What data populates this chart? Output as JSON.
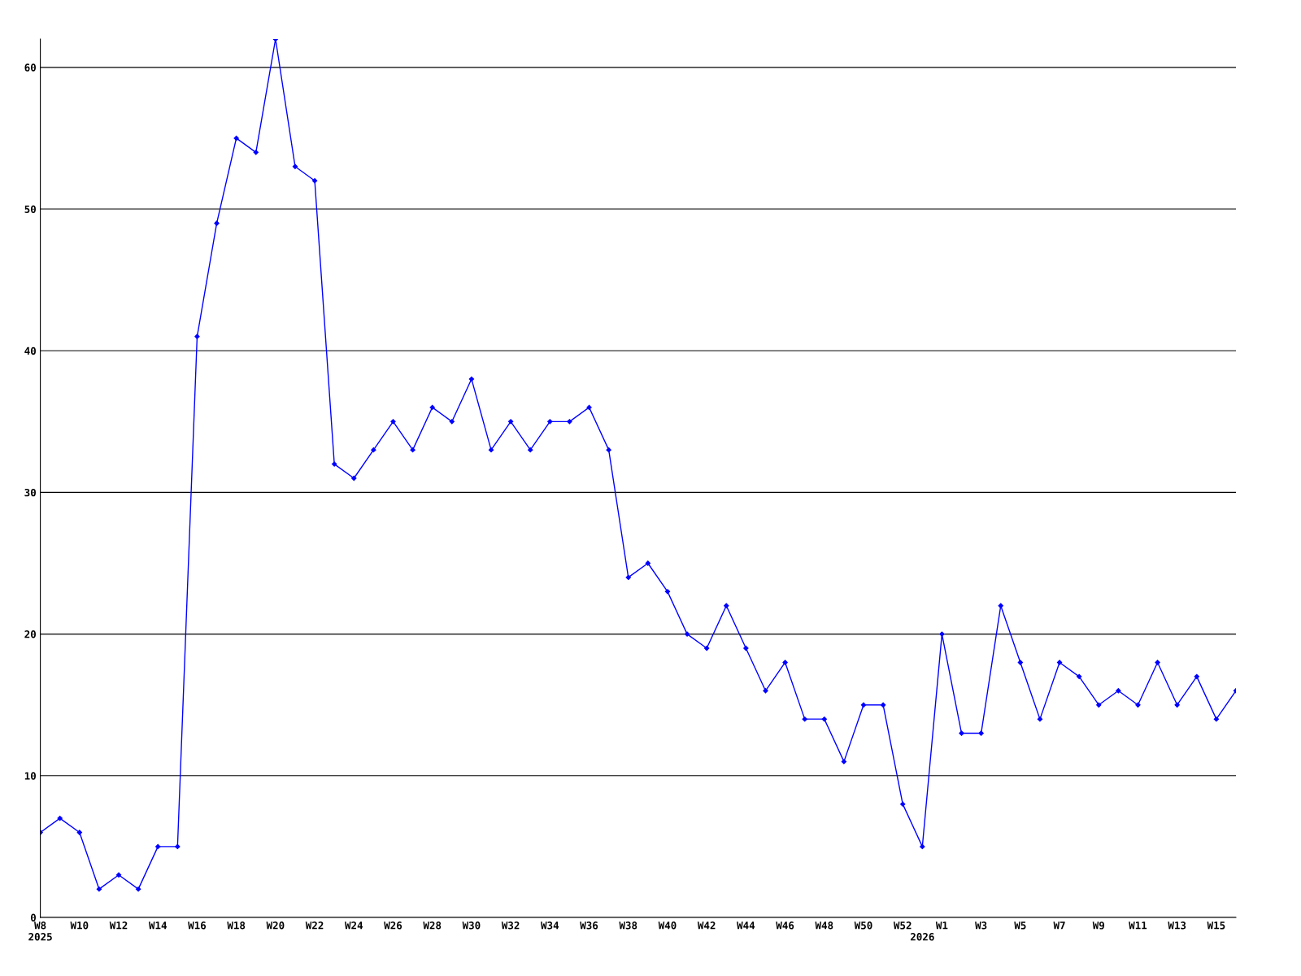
{
  "chart_data": {
    "type": "line",
    "categories": [
      "W8\n2025",
      null,
      "W10",
      null,
      "W12",
      null,
      "W14",
      null,
      "W16",
      null,
      "W18",
      null,
      "W20",
      null,
      "W22",
      null,
      "W24",
      null,
      "W26",
      null,
      "W28",
      null,
      "W30",
      null,
      "W32",
      null,
      "W34",
      null,
      "W36",
      null,
      "W38",
      null,
      "W40",
      null,
      "W42",
      null,
      "W44",
      null,
      "W46",
      null,
      "W48",
      null,
      "W50",
      null,
      "W52",
      "\n2026",
      "W1",
      null,
      "W3",
      null,
      "W5",
      null,
      "W7",
      null,
      "W9",
      null,
      "W11",
      null,
      "W13",
      null,
      "W15",
      null
    ],
    "series": [
      {
        "color": "#0000ff",
        "values": [
          6,
          7,
          6,
          2,
          3,
          2,
          5,
          5,
          41,
          49,
          55,
          54,
          62,
          53,
          52,
          32,
          31,
          33,
          35,
          33,
          36,
          35,
          38,
          33,
          35,
          33,
          35,
          35,
          36,
          33,
          24,
          25,
          23,
          20,
          19,
          22,
          19,
          16,
          18,
          14,
          14,
          11,
          15,
          15,
          8,
          5,
          20,
          13,
          13,
          22,
          18,
          14,
          18,
          17,
          15,
          16,
          15,
          18,
          15,
          17,
          14,
          16
        ]
      }
    ],
    "ylim": [
      0,
      62
    ],
    "yticks": [
      0,
      10,
      20,
      30,
      40,
      50,
      60
    ],
    "grid": "y",
    "marker": "diamond",
    "line_style": "solid",
    "legend": false
  }
}
